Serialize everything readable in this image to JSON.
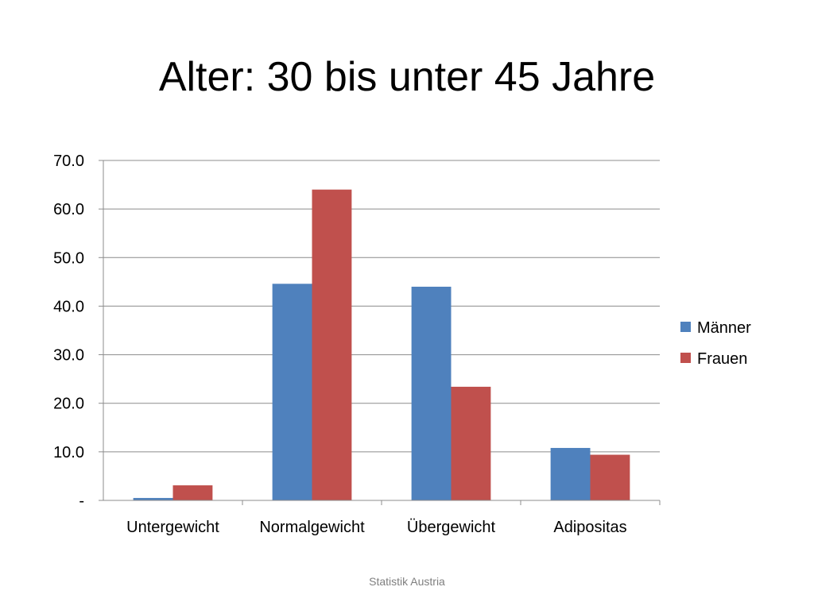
{
  "slide": {
    "title": "Alter: 30 bis unter 45 Jahre",
    "footer": "Statistik Austria"
  },
  "chart_data": {
    "type": "bar",
    "categories": [
      "Untergewicht",
      "Normalgewicht",
      "Übergewicht",
      "Adipositas"
    ],
    "series": [
      {
        "name": "Männer",
        "color": "#4f81bd",
        "values": [
          0.5,
          44.6,
          44.0,
          10.8
        ]
      },
      {
        "name": "Frauen",
        "color": "#c0504d",
        "values": [
          3.1,
          64.0,
          23.4,
          9.4
        ]
      }
    ],
    "ylim": [
      0,
      70
    ],
    "yticks": [
      0,
      10,
      20,
      30,
      40,
      50,
      60,
      70
    ],
    "ytick_labels": [
      "-",
      "10.0",
      "20.0",
      "30.0",
      "40.0",
      "50.0",
      "60.0",
      "70.0"
    ],
    "grid": true,
    "legend": "right"
  }
}
